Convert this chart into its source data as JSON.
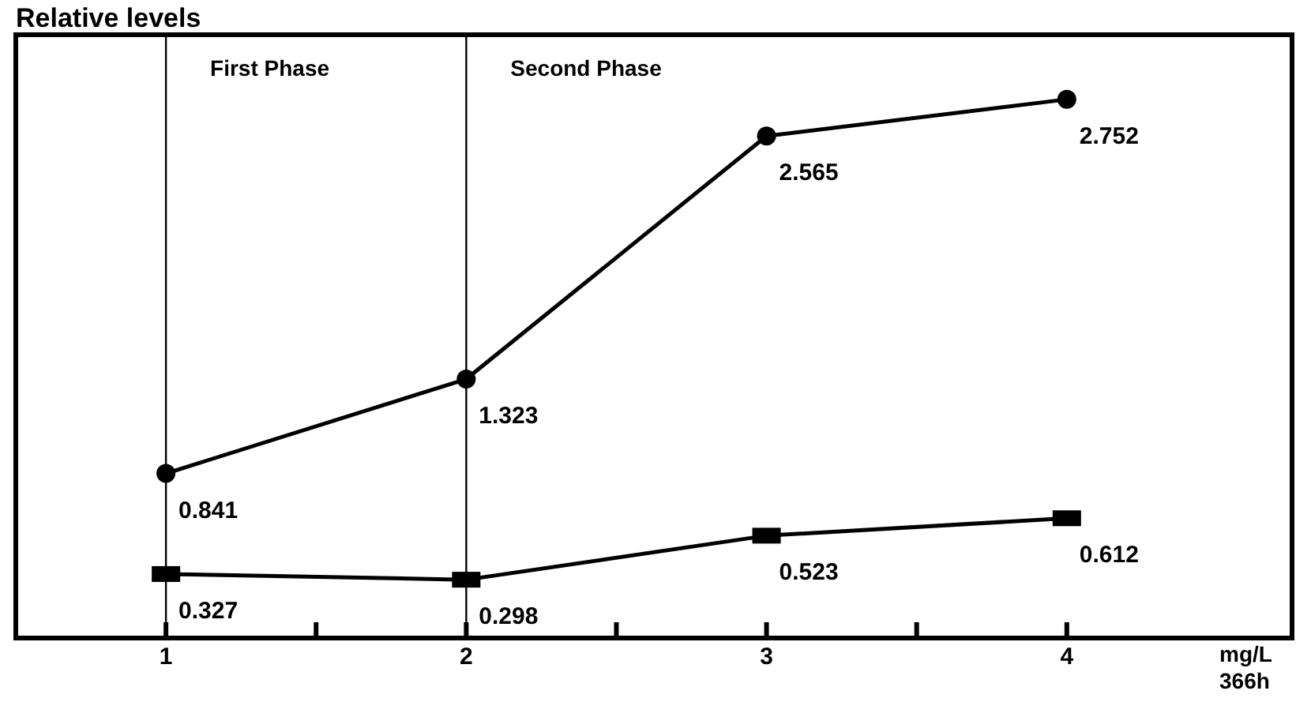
{
  "chart_data": {
    "type": "line",
    "ylabel": "Relative levels",
    "xlabel": "mg/L\n366h",
    "x": [
      1,
      2,
      3,
      4
    ],
    "xlim": [
      0.5,
      4.75
    ],
    "xticks": [
      1,
      {
        "value": 1.5,
        "label": null
      },
      2,
      {
        "value": 2.5,
        "label": null
      },
      3,
      {
        "value": 3.5,
        "label": null
      },
      4
    ],
    "series": [
      {
        "color": "#000000",
        "marker": "circle",
        "values": [
          0.841,
          1.323,
          2.565,
          2.752
        ]
      },
      {
        "color": "#000000",
        "marker": "square",
        "values": [
          0.327,
          0.298,
          0.523,
          0.612
        ]
      }
    ],
    "ref_lines": [
      {
        "axis": "x",
        "value": 1,
        "label": "First Phase",
        "color": "#000000"
      },
      {
        "axis": "x",
        "value": 2,
        "label": "Second Phase",
        "color": "#000000"
      }
    ],
    "data_labels": true,
    "line_style": "solid"
  }
}
